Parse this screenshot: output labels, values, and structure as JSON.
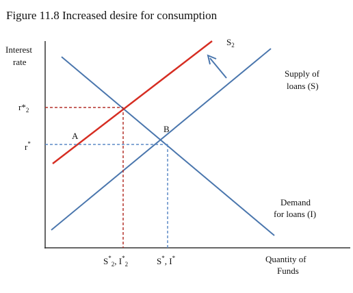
{
  "figure": {
    "title": "Figure 11.8 Increased desire for consumption"
  },
  "axes": {
    "y_label_line1": "Interest",
    "y_label_line2": "rate",
    "x_label_line1": "Quantity of",
    "x_label_line2": "Funds"
  },
  "curves": {
    "supply_line1": "Supply of",
    "supply_line2": "loans (S)",
    "demand_line1": "Demand",
    "demand_line2": "for loans (I)",
    "new_supply_main": "S",
    "new_supply_sub": "2"
  },
  "points": {
    "a_label": "A",
    "b_label": "B"
  },
  "ticks": {
    "r2_main": "r*",
    "r2_sub": "2",
    "r_main": "r",
    "r_sup": "*",
    "s2_main1": "S",
    "s2_sup1": "*",
    "s2_sub1": "2",
    "s2_mid": ", I",
    "s2_sup2": "*",
    "s2_sub2": "2",
    "s_main": "S",
    "s_sup1": "*",
    "s_mid": ", I",
    "s_sup2": "*"
  },
  "colors": {
    "axis": "#333333",
    "blue_curve": "#4a76ad",
    "red_curve": "#d62d22",
    "red_dash": "#b3302a",
    "blue_dash": "#5b8ac6"
  }
}
